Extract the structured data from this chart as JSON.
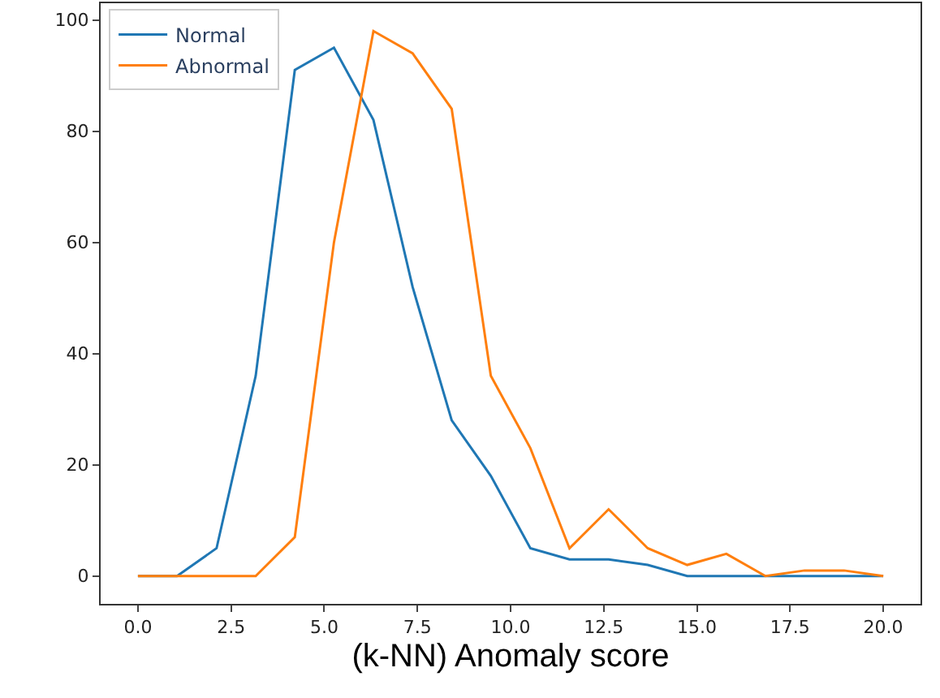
{
  "chart_data": {
    "type": "line",
    "xlabel": "(k-NN) Anomaly score",
    "x": [
      0,
      1.05,
      2.11,
      3.16,
      4.21,
      5.26,
      6.32,
      7.37,
      8.42,
      9.47,
      10.53,
      11.58,
      12.63,
      13.68,
      14.74,
      15.79,
      16.84,
      17.89,
      18.95,
      20
    ],
    "series": [
      {
        "name": "Normal",
        "color": "#1f77b4",
        "values": [
          0,
          0,
          5,
          36,
          91,
          95,
          82,
          52,
          28,
          18,
          5,
          3,
          3,
          2,
          0,
          0,
          0,
          0,
          0,
          0
        ]
      },
      {
        "name": "Abnormal",
        "color": "#ff7f0e",
        "values": [
          0,
          0,
          0,
          0,
          7,
          60,
          98,
          94,
          84,
          36,
          23,
          5,
          12,
          5,
          2,
          4,
          0,
          1,
          1,
          0
        ]
      }
    ],
    "xlim": [
      -1,
      21
    ],
    "ylim": [
      -5,
      103
    ],
    "xticks": [
      {
        "value": 0,
        "label": "0.0"
      },
      {
        "value": 2.5,
        "label": "2.5"
      },
      {
        "value": 5,
        "label": "5.0"
      },
      {
        "value": 7.5,
        "label": "7.5"
      },
      {
        "value": 10,
        "label": "10.0"
      },
      {
        "value": 12.5,
        "label": "12.5"
      },
      {
        "value": 15,
        "label": "15.0"
      },
      {
        "value": 17.5,
        "label": "17.5"
      },
      {
        "value": 20,
        "label": "20.0"
      }
    ],
    "yticks": [
      0,
      20,
      40,
      60,
      80,
      100
    ],
    "legend": "top left",
    "marker": "none",
    "line_style": "solid"
  }
}
